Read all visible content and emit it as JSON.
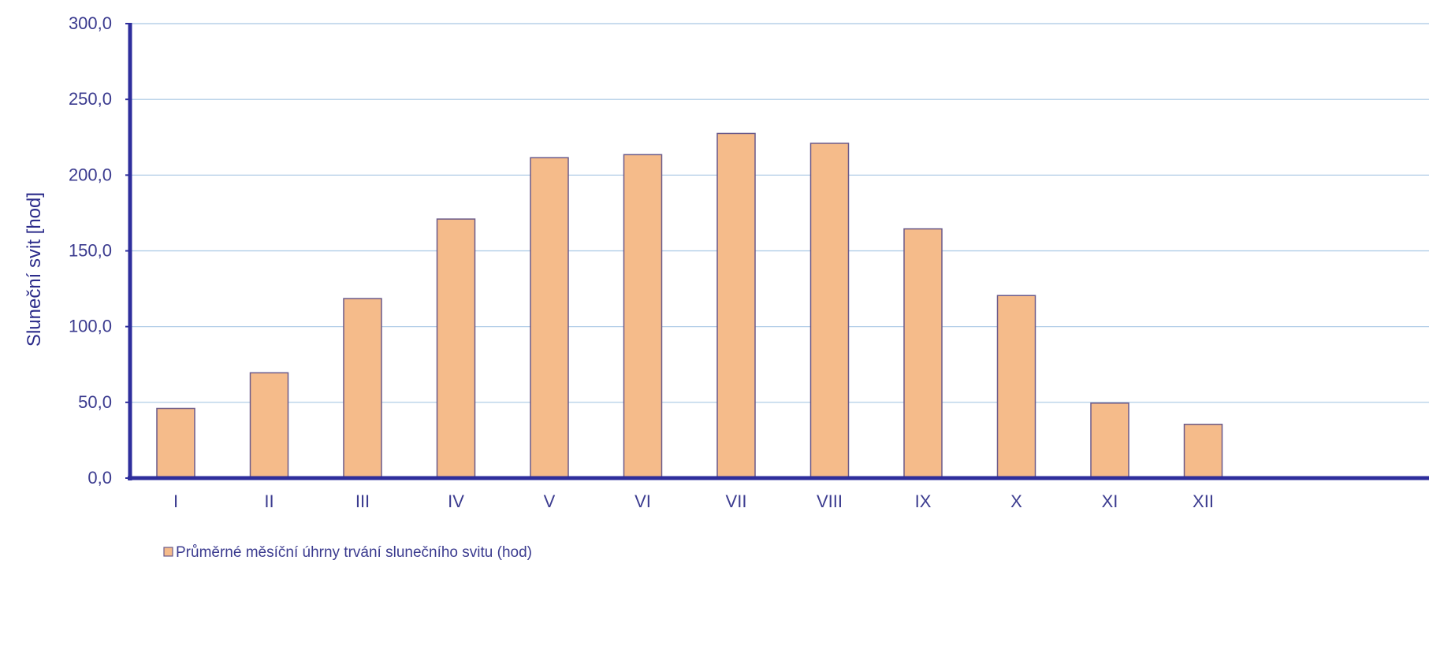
{
  "chart_data": {
    "type": "bar",
    "categories": [
      "I",
      "II",
      "III",
      "IV",
      "V",
      "VI",
      "VII",
      "VIII",
      "IX",
      "X",
      "XI",
      "XII"
    ],
    "series": [
      {
        "name": "Průměrné měsíční úhrny trvání slunečního svitu (hod)",
        "values": [
          46.0,
          69.5,
          118.5,
          171.0,
          211.5,
          213.5,
          227.5,
          221.0,
          164.5,
          120.5,
          49.5,
          35.5
        ]
      }
    ],
    "title": "",
    "xlabel": "",
    "ylabel": "Sluneční svit [hod]",
    "ylim": [
      0,
      300
    ],
    "yticks": [
      0,
      50,
      100,
      150,
      200,
      250,
      300
    ],
    "ytick_labels": [
      "0,0",
      "50,0",
      "100,0",
      "150,0",
      "200,0",
      "250,0",
      "300,0"
    ],
    "grid": true,
    "legend_position": "bottom-left",
    "colors": {
      "bar_fill": "#f5bb8a",
      "bar_stroke": "#6a5a8a",
      "axis": "#2e2e9c",
      "grid": "#a9c8e4",
      "text": "#3b3b8f"
    }
  }
}
